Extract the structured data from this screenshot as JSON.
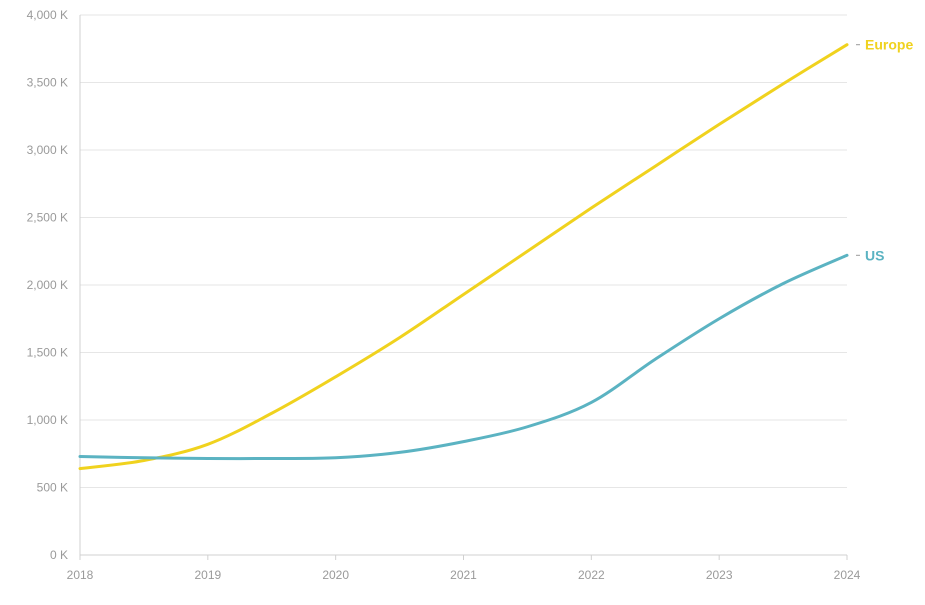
{
  "chart_data": {
    "type": "line",
    "x": [
      2018,
      2018.5,
      2019,
      2019.5,
      2020,
      2020.5,
      2021,
      2021.5,
      2022,
      2022.5,
      2023,
      2023.5,
      2024
    ],
    "x_ticks": [
      "2018",
      "2019",
      "2020",
      "2021",
      "2022",
      "2023",
      "2024"
    ],
    "y_ticks": [
      "0 K",
      "500 K",
      "1,000 K",
      "1,500 K",
      "2,000 K",
      "2,500 K",
      "3,000 K",
      "3,500 K",
      "4,000 K"
    ],
    "ylim": [
      0,
      4000
    ],
    "xlim": [
      2018,
      2024
    ],
    "grid": true,
    "series": [
      {
        "name": "Europe",
        "color": "#f0d21e",
        "values": [
          640,
          700,
          820,
          1050,
          1320,
          1610,
          1930,
          2250,
          2570,
          2880,
          3190,
          3490,
          3780
        ]
      },
      {
        "name": "US",
        "color": "#5bb3c2",
        "values": [
          730,
          720,
          715,
          715,
          720,
          760,
          840,
          950,
          1130,
          1450,
          1750,
          2010,
          2220
        ]
      }
    ]
  }
}
